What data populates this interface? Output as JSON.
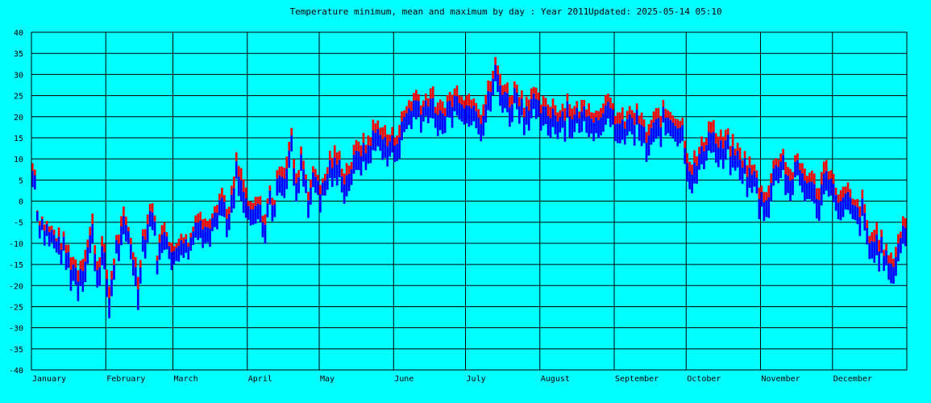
{
  "chart_data": {
    "type": "bar",
    "title": "Temperature minimum, mean and maximum by day : Year 2011",
    "updated": "Updated: 2025-05-14 05:10",
    "xlabel": "",
    "ylabel": "",
    "ylim": [
      -40,
      40
    ],
    "ytick_step": 5,
    "y_ticks": [
      "40",
      "35",
      "30",
      "25",
      "20",
      "15",
      "10",
      "5",
      "0",
      "-5",
      "-10",
      "-15",
      "-20",
      "-25",
      "-30",
      "-35",
      "-40"
    ],
    "months": [
      "January",
      "February",
      "March",
      "April",
      "May",
      "June",
      "July",
      "August",
      "September",
      "October",
      "November",
      "December"
    ],
    "month_days": [
      31,
      28,
      31,
      30,
      31,
      30,
      31,
      31,
      30,
      31,
      30,
      31
    ],
    "grid": true,
    "colors": {
      "background": "#00ffff",
      "grid": "#000000",
      "max_mean": "#ff0000",
      "mean_min": "#0000ff"
    },
    "series_anchor_points": {
      "max": [
        [
          1,
          9
        ],
        [
          2,
          9
        ],
        [
          3,
          -2
        ],
        [
          5,
          -4
        ],
        [
          8,
          -6
        ],
        [
          10,
          -7
        ],
        [
          14,
          -9
        ],
        [
          17,
          -12
        ],
        [
          20,
          -15
        ],
        [
          24,
          -9
        ],
        [
          26,
          -4
        ],
        [
          28,
          -14
        ],
        [
          30,
          -9
        ],
        [
          31,
          -12
        ],
        [
          33,
          -20
        ],
        [
          36,
          -9
        ],
        [
          39,
          -3
        ],
        [
          42,
          -8
        ],
        [
          45,
          -17
        ],
        [
          47,
          -7
        ],
        [
          51,
          1
        ],
        [
          53,
          -11
        ],
        [
          56,
          -4
        ],
        [
          60,
          -12
        ],
        [
          63,
          -6
        ],
        [
          65,
          -9
        ],
        [
          67,
          -8
        ],
        [
          70,
          -1
        ],
        [
          73,
          -5
        ],
        [
          77,
          0
        ],
        [
          80,
          3
        ],
        [
          83,
          -2
        ],
        [
          86,
          10
        ],
        [
          89,
          5
        ],
        [
          92,
          -2
        ],
        [
          95,
          1
        ],
        [
          98,
          -3
        ],
        [
          100,
          3
        ],
        [
          102,
          1
        ],
        [
          104,
          10
        ],
        [
          106,
          9
        ],
        [
          109,
          16
        ],
        [
          111,
          5
        ],
        [
          113,
          13
        ],
        [
          116,
          4
        ],
        [
          119,
          8
        ],
        [
          122,
          4
        ],
        [
          125,
          11
        ],
        [
          128,
          12
        ],
        [
          131,
          8
        ],
        [
          134,
          10
        ],
        [
          137,
          15
        ],
        [
          140,
          14
        ],
        [
          143,
          18
        ],
        [
          146,
          19
        ],
        [
          149,
          16
        ],
        [
          152,
          16
        ],
        [
          155,
          20
        ],
        [
          158,
          24
        ],
        [
          161,
          26
        ],
        [
          164,
          24
        ],
        [
          167,
          27
        ],
        [
          170,
          22
        ],
        [
          173,
          24
        ],
        [
          176,
          26
        ],
        [
          179,
          27
        ],
        [
          182,
          25
        ],
        [
          185,
          26
        ],
        [
          188,
          22
        ],
        [
          191,
          27
        ],
        [
          194,
          33
        ],
        [
          197,
          29
        ],
        [
          200,
          26
        ],
        [
          203,
          28
        ],
        [
          206,
          24
        ],
        [
          209,
          27
        ],
        [
          212,
          24
        ],
        [
          215,
          23
        ],
        [
          218,
          24
        ],
        [
          221,
          22
        ],
        [
          224,
          25
        ],
        [
          227,
          22
        ],
        [
          230,
          23
        ],
        [
          233,
          24
        ],
        [
          236,
          21
        ],
        [
          239,
          25
        ],
        [
          242,
          23
        ],
        [
          245,
          21
        ],
        [
          248,
          20
        ],
        [
          251,
          22
        ],
        [
          254,
          21
        ],
        [
          257,
          17
        ],
        [
          260,
          20
        ],
        [
          263,
          22
        ],
        [
          266,
          22
        ],
        [
          269,
          21
        ],
        [
          272,
          19
        ],
        [
          275,
          10
        ],
        [
          278,
          11
        ],
        [
          281,
          15
        ],
        [
          284,
          20
        ],
        [
          287,
          15
        ],
        [
          290,
          16
        ],
        [
          293,
          14
        ],
        [
          296,
          12
        ],
        [
          299,
          10
        ],
        [
          302,
          8
        ],
        [
          305,
          3
        ],
        [
          308,
          4
        ],
        [
          311,
          11
        ],
        [
          314,
          12
        ],
        [
          317,
          7
        ],
        [
          320,
          10
        ],
        [
          323,
          8
        ],
        [
          326,
          6
        ],
        [
          329,
          4
        ],
        [
          332,
          11
        ],
        [
          335,
          5
        ],
        [
          338,
          2
        ],
        [
          341,
          3
        ],
        [
          344,
          -1
        ],
        [
          347,
          1
        ],
        [
          350,
          -8
        ],
        [
          353,
          -6
        ],
        [
          356,
          -10
        ],
        [
          359,
          -14
        ],
        [
          362,
          -8
        ],
        [
          365,
          -3
        ]
      ],
      "min": [
        [
          1,
          5
        ],
        [
          2,
          5
        ],
        [
          3,
          -3
        ],
        [
          5,
          -6
        ],
        [
          8,
          -10
        ],
        [
          10,
          -10
        ],
        [
          14,
          -13
        ],
        [
          17,
          -17
        ],
        [
          20,
          -20
        ],
        [
          24,
          -14
        ],
        [
          26,
          -9
        ],
        [
          28,
          -20
        ],
        [
          30,
          -14
        ],
        [
          31,
          -17
        ],
        [
          33,
          -25
        ],
        [
          36,
          -13
        ],
        [
          39,
          -7
        ],
        [
          42,
          -12
        ],
        [
          45,
          -22
        ],
        [
          47,
          -11
        ],
        [
          51,
          -3
        ],
        [
          53,
          -15
        ],
        [
          56,
          -8
        ],
        [
          60,
          -16
        ],
        [
          63,
          -10
        ],
        [
          65,
          -13
        ],
        [
          67,
          -12
        ],
        [
          70,
          -5
        ],
        [
          73,
          -9
        ],
        [
          77,
          -4
        ],
        [
          80,
          -1
        ],
        [
          83,
          -6
        ],
        [
          86,
          5
        ],
        [
          89,
          0
        ],
        [
          92,
          -6
        ],
        [
          95,
          -3
        ],
        [
          98,
          -7
        ],
        [
          100,
          -1
        ],
        [
          102,
          -3
        ],
        [
          104,
          5
        ],
        [
          106,
          4
        ],
        [
          109,
          11
        ],
        [
          111,
          0
        ],
        [
          113,
          8
        ],
        [
          116,
          0
        ],
        [
          119,
          3
        ],
        [
          122,
          0
        ],
        [
          125,
          6
        ],
        [
          128,
          7
        ],
        [
          131,
          3
        ],
        [
          134,
          5
        ],
        [
          137,
          10
        ],
        [
          140,
          9
        ],
        [
          143,
          13
        ],
        [
          146,
          14
        ],
        [
          149,
          11
        ],
        [
          152,
          11
        ],
        [
          155,
          15
        ],
        [
          158,
          19
        ],
        [
          161,
          21
        ],
        [
          164,
          19
        ],
        [
          167,
          22
        ],
        [
          170,
          17
        ],
        [
          173,
          19
        ],
        [
          176,
          21
        ],
        [
          179,
          22
        ],
        [
          182,
          20
        ],
        [
          185,
          21
        ],
        [
          188,
          17
        ],
        [
          191,
          22
        ],
        [
          194,
          28
        ],
        [
          197,
          24
        ],
        [
          200,
          21
        ],
        [
          203,
          23
        ],
        [
          206,
          19
        ],
        [
          209,
          22
        ],
        [
          212,
          19
        ],
        [
          215,
          18
        ],
        [
          218,
          19
        ],
        [
          221,
          17
        ],
        [
          224,
          20
        ],
        [
          227,
          17
        ],
        [
          230,
          18
        ],
        [
          233,
          19
        ],
        [
          236,
          16
        ],
        [
          239,
          20
        ],
        [
          242,
          18
        ],
        [
          245,
          16
        ],
        [
          248,
          15
        ],
        [
          251,
          17
        ],
        [
          254,
          16
        ],
        [
          257,
          12
        ],
        [
          260,
          15
        ],
        [
          263,
          17
        ],
        [
          266,
          17
        ],
        [
          269,
          16
        ],
        [
          272,
          14
        ],
        [
          275,
          5
        ],
        [
          278,
          6
        ],
        [
          281,
          10
        ],
        [
          284,
          15
        ],
        [
          287,
          10
        ],
        [
          290,
          11
        ],
        [
          293,
          9
        ],
        [
          296,
          7
        ],
        [
          299,
          5
        ],
        [
          302,
          3
        ],
        [
          305,
          -2
        ],
        [
          308,
          -1
        ],
        [
          311,
          6
        ],
        [
          314,
          7
        ],
        [
          317,
          2
        ],
        [
          320,
          5
        ],
        [
          323,
          3
        ],
        [
          326,
          1
        ],
        [
          329,
          -1
        ],
        [
          332,
          6
        ],
        [
          335,
          0
        ],
        [
          338,
          -3
        ],
        [
          341,
          -2
        ],
        [
          344,
          -5
        ],
        [
          347,
          -4
        ],
        [
          350,
          -13
        ],
        [
          353,
          -11
        ],
        [
          356,
          -15
        ],
        [
          359,
          -19
        ],
        [
          362,
          -13
        ],
        [
          365,
          -8
        ]
      ]
    }
  }
}
